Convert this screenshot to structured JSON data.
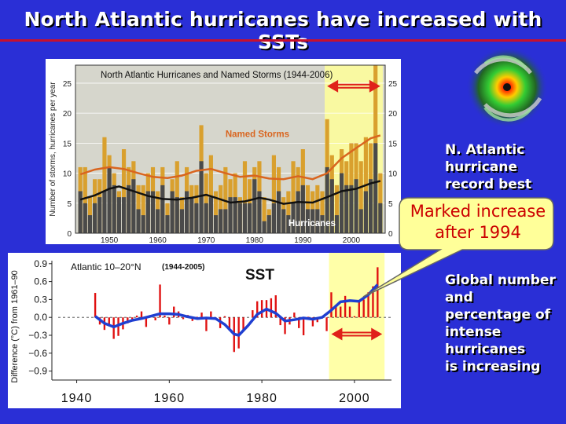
{
  "slide": {
    "title": "North Atlantic hurricanes have increased with SSTs",
    "side_text_1": [
      "N. Atlantic",
      "hurricane",
      "record best"
    ],
    "side_text_2": [
      "Global number",
      "and",
      "percentage of",
      "intense",
      "hurricanes",
      "is increasing"
    ],
    "callout": [
      "Marked increase",
      "after 1994"
    ],
    "colors": {
      "background": "#2a2fd6",
      "title_rule": "#c8102e",
      "highlight": "#ffff99",
      "arrow": "#e0201a",
      "callout_fill": "#ffff99",
      "callout_text": "#cc0000"
    }
  },
  "chart_data": [
    {
      "type": "bar",
      "title": "North Atlantic Hurricanes and Named Storms (1944-2006)",
      "ylabel": "Number of storms, hurricanes per year",
      "xlabel": "",
      "xlim": [
        1943,
        2007
      ],
      "ylim": [
        0,
        28
      ],
      "yticks": [
        0,
        5,
        10,
        15,
        20,
        25
      ],
      "xticks": [
        1950,
        1960,
        1970,
        1980,
        1990,
        2000
      ],
      "highlight_range": [
        1995,
        2006
      ],
      "years": [
        1944,
        1945,
        1946,
        1947,
        1948,
        1949,
        1950,
        1951,
        1952,
        1953,
        1954,
        1955,
        1956,
        1957,
        1958,
        1959,
        1960,
        1961,
        1962,
        1963,
        1964,
        1965,
        1966,
        1967,
        1968,
        1969,
        1970,
        1971,
        1972,
        1973,
        1974,
        1975,
        1976,
        1977,
        1978,
        1979,
        1980,
        1981,
        1982,
        1983,
        1984,
        1985,
        1986,
        1987,
        1988,
        1989,
        1990,
        1991,
        1992,
        1993,
        1994,
        1995,
        1996,
        1997,
        1998,
        1999,
        2000,
        2001,
        2002,
        2003,
        2004,
        2005,
        2006
      ],
      "series": [
        {
          "name": "Named Storms",
          "color": "#d9a02e",
          "values": [
            11,
            11,
            6,
            9,
            9,
            16,
            13,
            10,
            7,
            14,
            11,
            12,
            8,
            8,
            10,
            11,
            7,
            11,
            5,
            9,
            12,
            6,
            11,
            8,
            8,
            18,
            10,
            13,
            7,
            8,
            11,
            9,
            10,
            6,
            12,
            9,
            11,
            12,
            6,
            4,
            13,
            11,
            6,
            7,
            12,
            11,
            14,
            8,
            7,
            8,
            7,
            19,
            13,
            8,
            14,
            12,
            15,
            15,
            12,
            16,
            15,
            28,
            10
          ]
        },
        {
          "name": "Hurricanes",
          "color": "#4a4a4a",
          "values": [
            7,
            5,
            3,
            5,
            6,
            7,
            11,
            8,
            6,
            6,
            8,
            9,
            4,
            3,
            7,
            7,
            4,
            8,
            3,
            7,
            6,
            4,
            7,
            6,
            5,
            12,
            5,
            6,
            3,
            4,
            4,
            6,
            6,
            5,
            5,
            5,
            9,
            7,
            2,
            3,
            5,
            7,
            4,
            3,
            5,
            7,
            8,
            4,
            4,
            4,
            3,
            11,
            9,
            3,
            10,
            8,
            8,
            9,
            4,
            7,
            9,
            15,
            5
          ]
        }
      ],
      "trend_lines": [
        {
          "name": "Named Storms smoothed",
          "color": "#d9651f",
          "points": [
            [
              1944,
              9.8
            ],
            [
              1947,
              10.6
            ],
            [
              1950,
              11.0
            ],
            [
              1953,
              10.7
            ],
            [
              1956,
              10.0
            ],
            [
              1959,
              9.4
            ],
            [
              1962,
              9.2
            ],
            [
              1965,
              9.6
            ],
            [
              1968,
              10.4
            ],
            [
              1971,
              10.7
            ],
            [
              1974,
              10.0
            ],
            [
              1977,
              9.4
            ],
            [
              1980,
              9.6
            ],
            [
              1983,
              9.1
            ],
            [
              1986,
              9.0
            ],
            [
              1989,
              9.5
            ],
            [
              1992,
              9.0
            ],
            [
              1995,
              10.0
            ],
            [
              1998,
              12.5
            ],
            [
              2001,
              14.2
            ],
            [
              2004,
              15.8
            ],
            [
              2006,
              16.3
            ]
          ]
        },
        {
          "name": "Hurricanes smoothed",
          "color": "#111111",
          "points": [
            [
              1944,
              5.6
            ],
            [
              1947,
              6.3
            ],
            [
              1950,
              7.4
            ],
            [
              1952,
              7.8
            ],
            [
              1955,
              7.0
            ],
            [
              1958,
              6.2
            ],
            [
              1961,
              5.7
            ],
            [
              1964,
              5.6
            ],
            [
              1967,
              5.9
            ],
            [
              1970,
              6.4
            ],
            [
              1972,
              5.9
            ],
            [
              1975,
              5.1
            ],
            [
              1978,
              5.3
            ],
            [
              1981,
              5.9
            ],
            [
              1983,
              5.6
            ],
            [
              1986,
              4.9
            ],
            [
              1989,
              5.2
            ],
            [
              1992,
              5.1
            ],
            [
              1995,
              6.0
            ],
            [
              1998,
              7.0
            ],
            [
              2001,
              7.4
            ],
            [
              2004,
              8.3
            ],
            [
              2006,
              8.7
            ]
          ]
        }
      ],
      "annotations": [
        "Named Storms",
        "Hurricanes"
      ]
    },
    {
      "type": "bar",
      "title": "Atlantic 10–20°N",
      "subtitle": "(1944-2005)",
      "label": "SST",
      "ylabel": "Difference (°C) from 1961–90",
      "xlabel": "",
      "xlim": [
        1936,
        2008
      ],
      "ylim": [
        -1.05,
        0.95
      ],
      "yticks": [
        -0.9,
        -0.6,
        -0.3,
        0.0,
        0.3,
        0.6,
        0.9
      ],
      "ytick_labels": [
        "−0.9",
        "−0.6",
        "−0.3",
        "0.0",
        "0.3",
        "0.6",
        "0.9"
      ],
      "xticks": [
        1940,
        1960,
        1980,
        2000
      ],
      "highlight_range": [
        1995,
        2006
      ],
      "years": [
        1944,
        1945,
        1946,
        1947,
        1948,
        1949,
        1950,
        1951,
        1952,
        1953,
        1954,
        1955,
        1956,
        1957,
        1958,
        1959,
        1960,
        1961,
        1962,
        1963,
        1964,
        1965,
        1966,
        1967,
        1968,
        1969,
        1970,
        1971,
        1972,
        1973,
        1974,
        1975,
        1976,
        1977,
        1978,
        1979,
        1980,
        1981,
        1982,
        1983,
        1984,
        1985,
        1986,
        1987,
        1988,
        1989,
        1990,
        1991,
        1992,
        1993,
        1994,
        1995,
        1996,
        1997,
        1998,
        1999,
        2000,
        2001,
        2002,
        2003,
        2004,
        2005
      ],
      "series": [
        {
          "name": "Annual SST anomaly",
          "color": "#e01010",
          "values": [
            0.41,
            -0.12,
            -0.21,
            -0.15,
            -0.36,
            -0.31,
            -0.2,
            -0.1,
            -0.06,
            0.03,
            0.1,
            -0.16,
            0.04,
            -0.05,
            0.55,
            0.03,
            -0.12,
            0.18,
            0.1,
            -0.03,
            0.04,
            -0.06,
            0.01,
            0.08,
            -0.23,
            0.1,
            -0.02,
            -0.18,
            0.02,
            -0.22,
            -0.58,
            -0.52,
            -0.24,
            0.0,
            0.12,
            0.27,
            0.29,
            0.29,
            0.32,
            0.37,
            -0.13,
            -0.28,
            -0.12,
            0.08,
            -0.18,
            -0.3,
            0.01,
            -0.15,
            -0.08,
            0.01,
            -0.23,
            0.42,
            0.21,
            0.18,
            0.36,
            0.18,
            0.02,
            0.26,
            0.3,
            0.42,
            0.52,
            0.84
          ]
        },
        {
          "name": "Smoothed",
          "color": "#1f3fd1",
          "points": [
            [
              1944,
              0.02
            ],
            [
              1946,
              -0.1
            ],
            [
              1948,
              -0.16
            ],
            [
              1950,
              -0.1
            ],
            [
              1952,
              -0.05
            ],
            [
              1954,
              -0.02
            ],
            [
              1956,
              0.02
            ],
            [
              1958,
              0.06
            ],
            [
              1960,
              0.06
            ],
            [
              1962,
              0.05
            ],
            [
              1964,
              0.01
            ],
            [
              1966,
              -0.02
            ],
            [
              1968,
              -0.01
            ],
            [
              1970,
              -0.02
            ],
            [
              1972,
              -0.12
            ],
            [
              1974,
              -0.28
            ],
            [
              1975,
              -0.3
            ],
            [
              1977,
              -0.14
            ],
            [
              1979,
              0.05
            ],
            [
              1981,
              0.14
            ],
            [
              1983,
              0.07
            ],
            [
              1985,
              -0.06
            ],
            [
              1987,
              -0.04
            ],
            [
              1989,
              -0.01
            ],
            [
              1991,
              -0.03
            ],
            [
              1993,
              0.0
            ],
            [
              1995,
              0.12
            ],
            [
              1997,
              0.26
            ],
            [
              1999,
              0.28
            ],
            [
              2001,
              0.27
            ],
            [
              2003,
              0.38
            ],
            [
              2005,
              0.55
            ]
          ]
        }
      ]
    }
  ]
}
